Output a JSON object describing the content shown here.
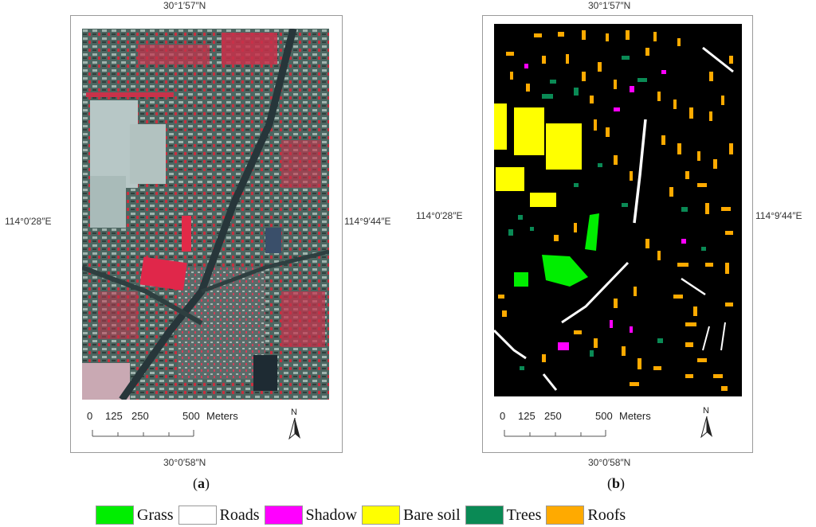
{
  "panels": [
    {
      "id": "a",
      "caption": "a",
      "coords": {
        "top": "30°1′57″N",
        "bottom": "30°0′58″N",
        "left": "114°0′28″E",
        "right": "114°9′44″E"
      },
      "map_kind": "false-color satellite image"
    },
    {
      "id": "b",
      "caption": "b",
      "coords": {
        "top": "30°1′57″N",
        "bottom": "30°0′58″N",
        "left": "114°0′28″E",
        "right": "114°9′44″E"
      },
      "map_kind": "land cover classification"
    }
  ],
  "scale_bar": {
    "ticks": [
      "0",
      "125",
      "250",
      "500"
    ],
    "unit": "Meters"
  },
  "north_arrow": {
    "label": "N"
  },
  "legend": [
    {
      "label": "Grass",
      "color": "#00ee00"
    },
    {
      "label": "Roads",
      "color": "#ffffff"
    },
    {
      "label": "Shadow",
      "color": "#ff00ff"
    },
    {
      "label": "Bare soil",
      "color": "#ffff00"
    },
    {
      "label": "Trees",
      "color": "#0a8a55"
    },
    {
      "label": "Roofs",
      "color": "#ffaa00"
    }
  ]
}
